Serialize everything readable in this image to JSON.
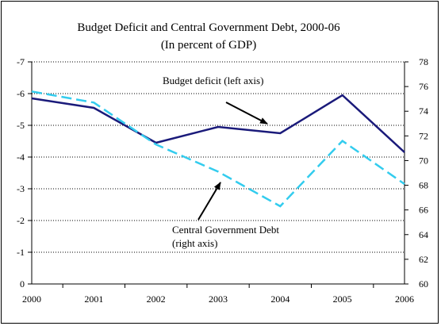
{
  "chart_data": {
    "type": "line",
    "title": "Budget Deficit and Central Government Debt, 2000-06",
    "subtitle": "(In percent of GDP)",
    "x": [
      "2000",
      "2001",
      "2002",
      "2003",
      "2004",
      "2005",
      "2006"
    ],
    "left_axis": {
      "tick_labels": [
        "-7",
        "-6",
        "-5",
        "-4",
        "-3",
        "-2",
        "-1",
        "0"
      ],
      "ylim": [
        0,
        -7
      ],
      "inverted": true
    },
    "right_axis": {
      "tick_labels": [
        "78",
        "76",
        "74",
        "72",
        "70",
        "68",
        "66",
        "64",
        "62",
        "60"
      ],
      "ylim": [
        60,
        78
      ]
    },
    "grid": "horizontal",
    "series": [
      {
        "axis": "left",
        "style": "solid",
        "color": "#1a1a7a",
        "values": [
          -5.85,
          -5.55,
          -4.45,
          -4.95,
          -4.75,
          -5.95,
          -4.15
        ]
      },
      {
        "axis": "right",
        "style": "dashed",
        "color": "#33ccee",
        "values": [
          75.6,
          74.7,
          71.3,
          69.1,
          66.3,
          71.6,
          68.1
        ]
      }
    ],
    "annotations": [
      {
        "text": "Budget deficit (left axis)"
      },
      {
        "lines": [
          "Central Government Debt",
          "(right axis)"
        ]
      }
    ]
  }
}
